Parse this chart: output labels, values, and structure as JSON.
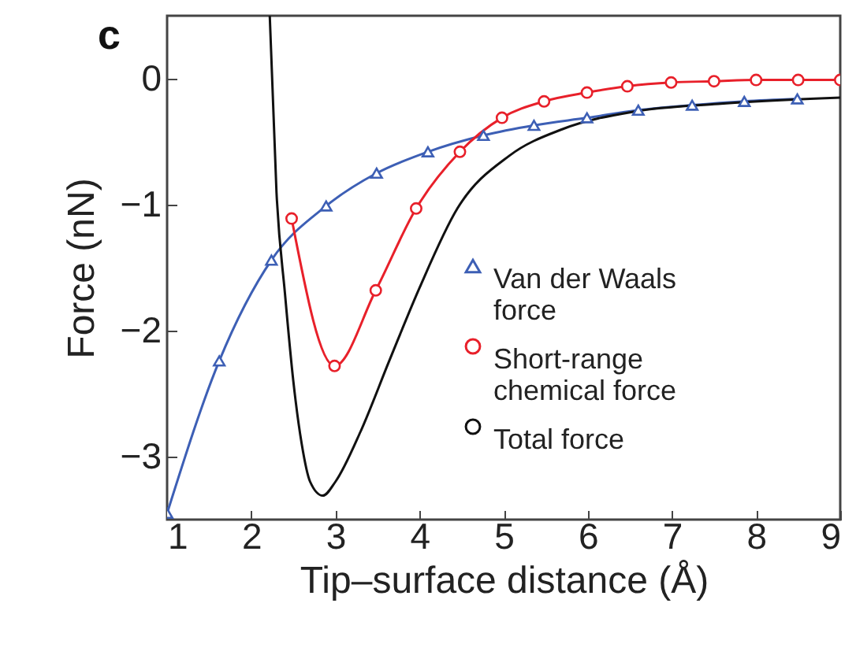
{
  "chart_data": {
    "type": "line",
    "annotations": [
      "c"
    ],
    "xlabel": "Tip–surface distance (Å)",
    "ylabel": "Force (nN)",
    "xlim": [
      1,
      9
    ],
    "ylim": [
      -3.5,
      0.5
    ],
    "xticks": [
      1,
      2,
      3,
      4,
      5,
      6,
      7,
      8,
      9
    ],
    "yticks": [
      -3,
      -2,
      -1,
      0
    ],
    "grid": false,
    "legend": "right",
    "series": [
      {
        "name": "Van der Waals force",
        "color": "#3d5fb5",
        "marker": "triangle",
        "x": [
          1.0,
          1.62,
          2.24,
          2.89,
          3.49,
          4.1,
          4.76,
          5.36,
          5.99,
          6.6,
          7.24,
          7.86,
          8.49
        ],
        "values": [
          -3.45,
          -2.24,
          -1.44,
          -1.01,
          -0.75,
          -0.58,
          -0.45,
          -0.37,
          -0.31,
          -0.25,
          -0.21,
          -0.18,
          -0.16
        ]
      },
      {
        "name": "Short-range chemical force",
        "color": "#e8202a",
        "marker": "circle",
        "x": [
          2.48,
          2.99,
          3.48,
          3.96,
          4.48,
          4.98,
          5.48,
          5.99,
          6.47,
          6.99,
          7.5,
          8.0,
          8.5,
          9.0
        ],
        "values": [
          -1.11,
          -2.28,
          -1.68,
          -1.03,
          -0.58,
          -0.31,
          -0.18,
          -0.11,
          -0.06,
          -0.03,
          -0.02,
          -0.01,
          -0.01,
          -0.01
        ]
      },
      {
        "name": "Total force",
        "color": "#111111",
        "marker": "none",
        "x": [
          2.22,
          2.3,
          2.4,
          2.5,
          2.6,
          2.7,
          2.85,
          3.0,
          3.3,
          3.64,
          4.0,
          4.45,
          5.07,
          5.7,
          6.56,
          7.55,
          9.0
        ],
        "values": [
          0.5,
          -0.9,
          -1.7,
          -2.4,
          -2.9,
          -3.2,
          -3.31,
          -3.2,
          -2.8,
          -2.24,
          -1.66,
          -1.03,
          -0.61,
          -0.4,
          -0.26,
          -0.2,
          -0.15
        ]
      }
    ]
  }
}
